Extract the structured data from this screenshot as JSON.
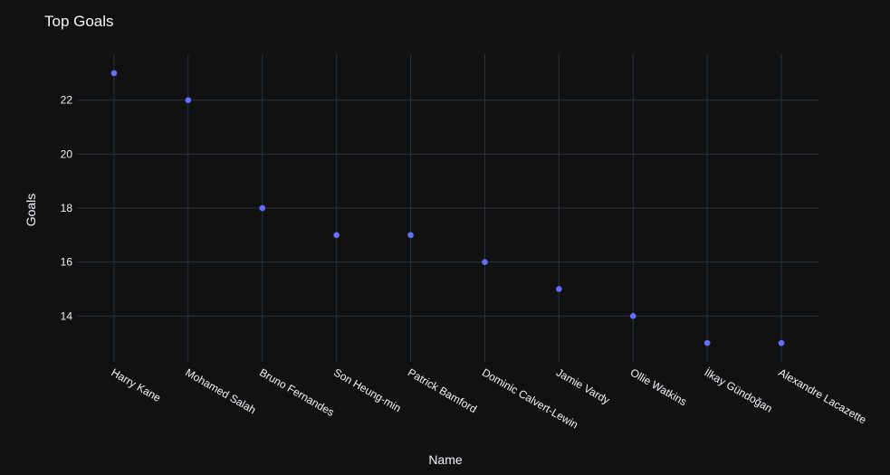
{
  "chart_data": {
    "type": "scatter",
    "title": "Top Goals",
    "xlabel": "Name",
    "ylabel": "Goals",
    "categories": [
      "Harry Kane",
      "Mohamed Salah",
      "Bruno Fernandes",
      "Son Heung-min",
      "Patrick Bamford",
      "Dominic Calvert-Lewin",
      "Jamie Vardy",
      "Ollie Watkins",
      "İlkay Gündoğan",
      "Alexandre Lacazette"
    ],
    "values": [
      23,
      22,
      18,
      17,
      17,
      16,
      15,
      14,
      13,
      13
    ],
    "yticks": [
      14,
      16,
      18,
      20,
      22
    ],
    "ylim": [
      12.3,
      23.7
    ],
    "grid": true,
    "colors": {
      "background": "#111111",
      "grid": "#283442",
      "marker": "#636efa",
      "text": "#f2f5fa"
    }
  }
}
